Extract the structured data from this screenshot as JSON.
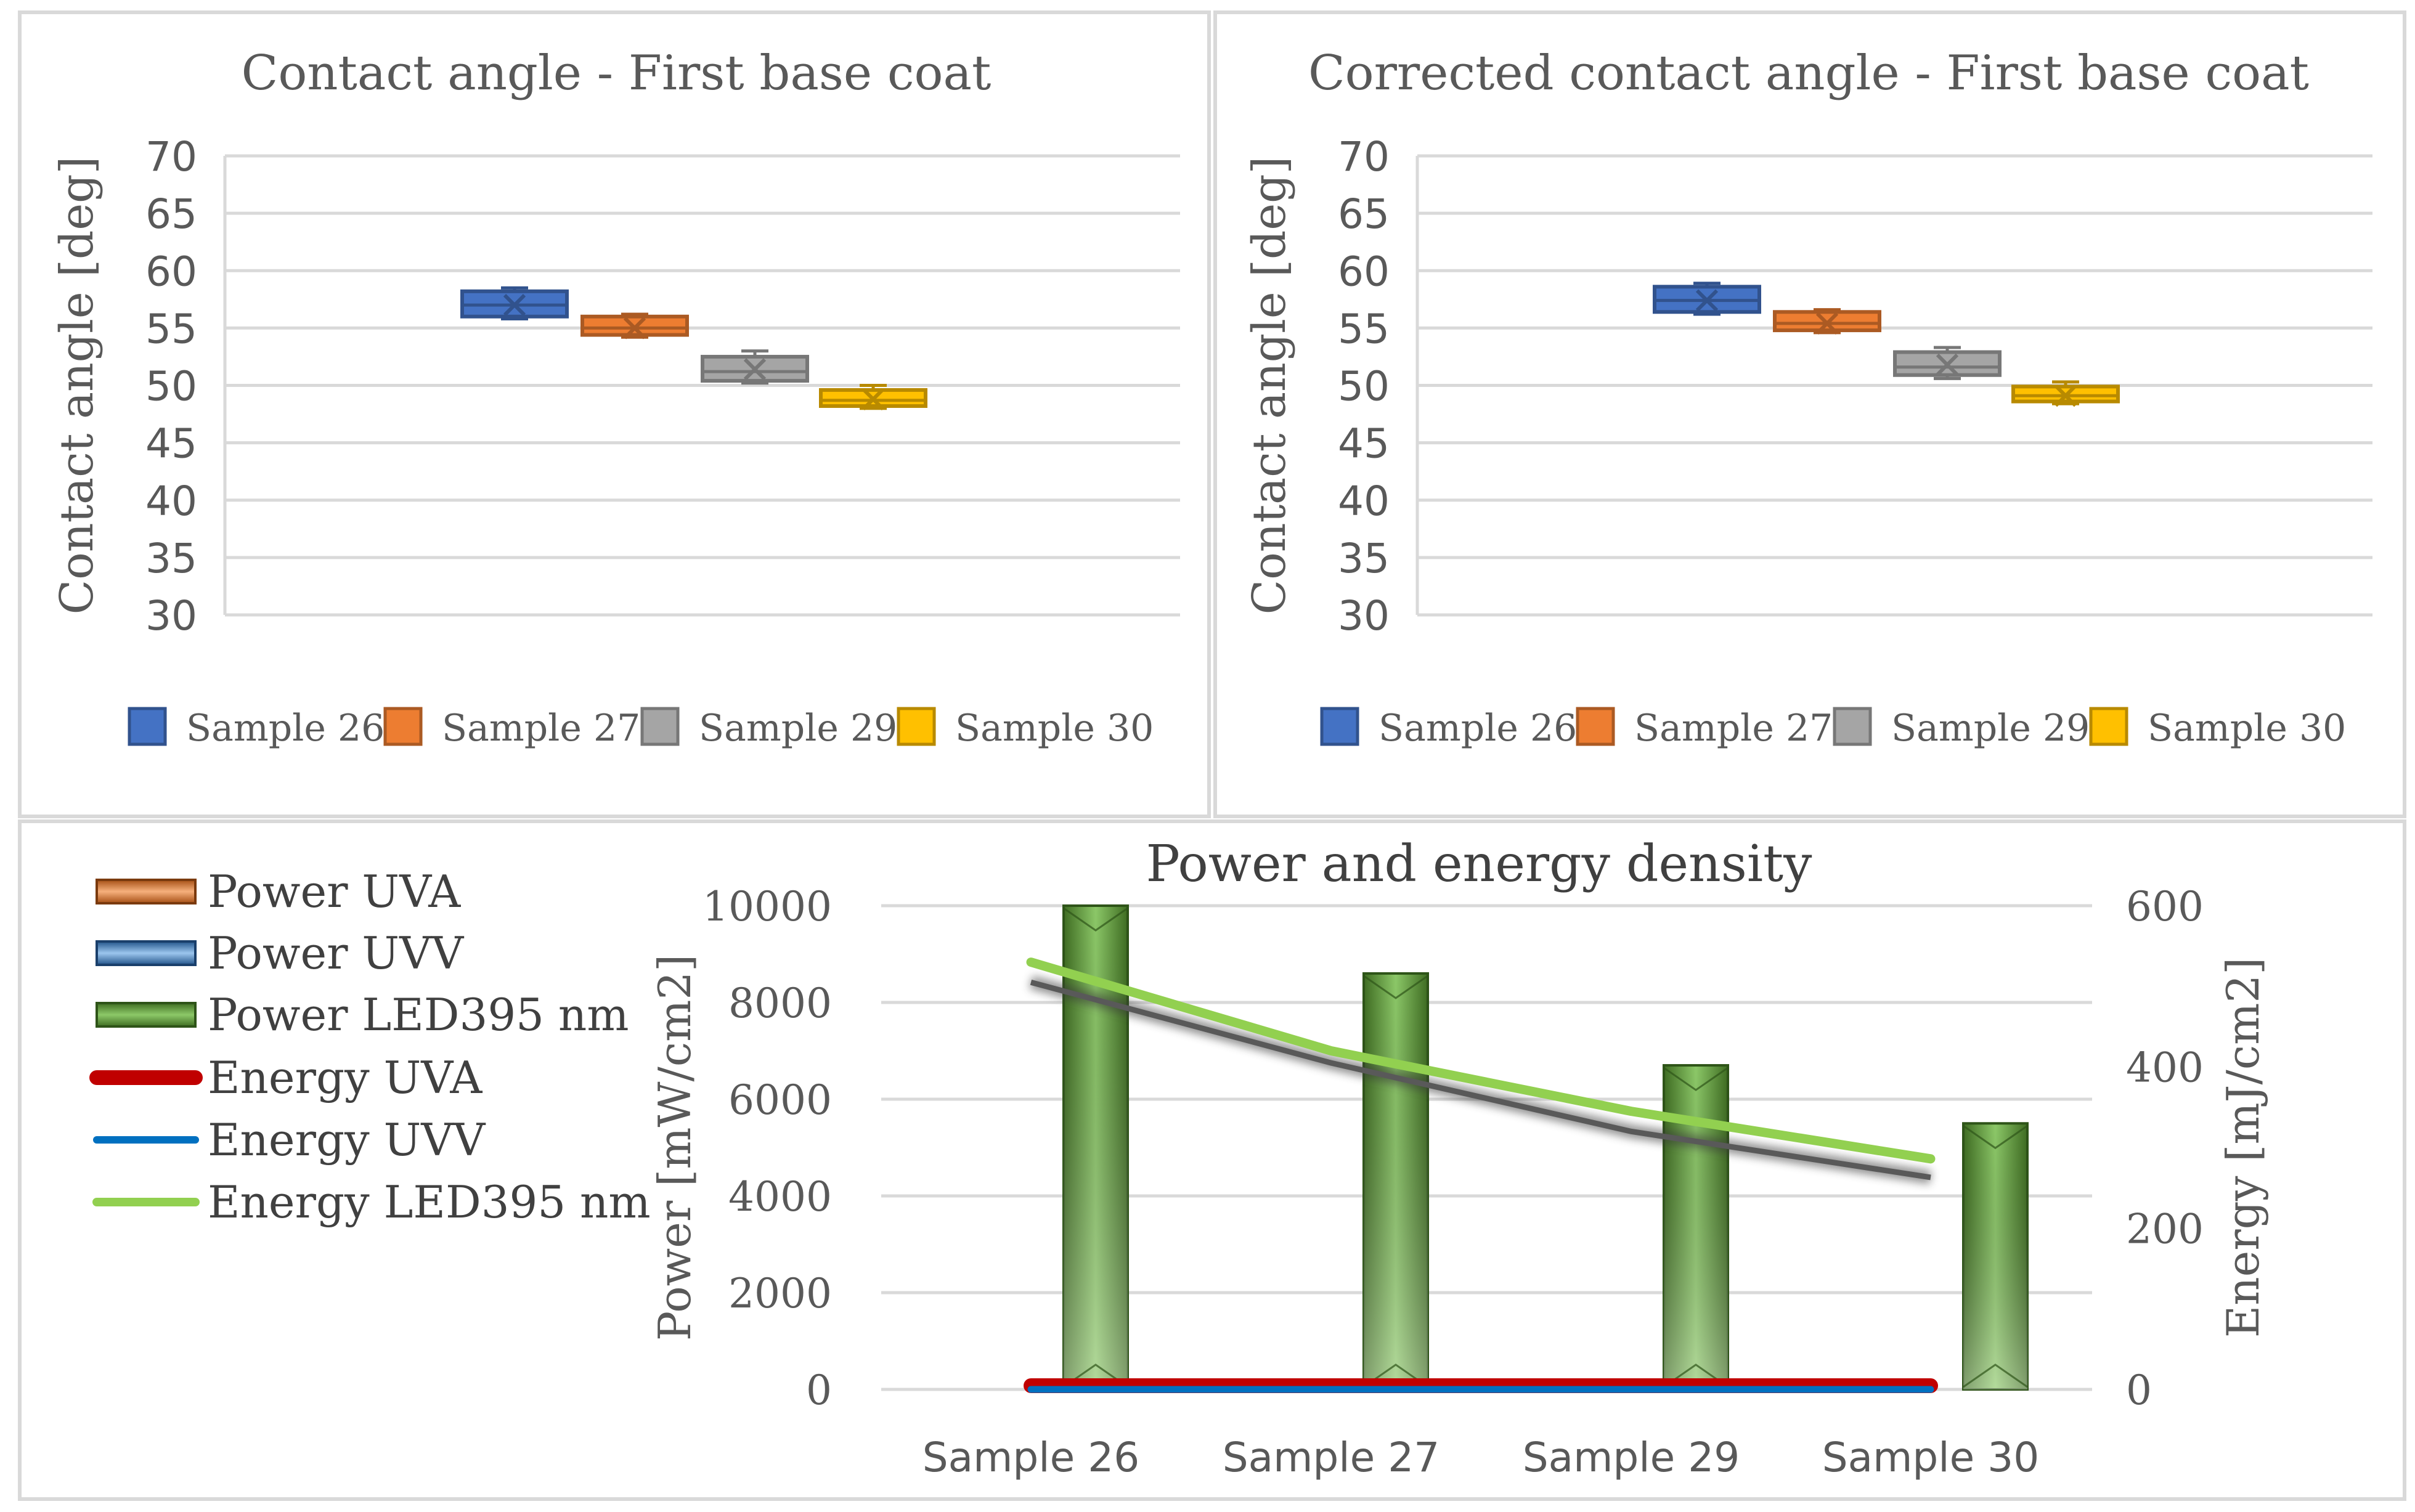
{
  "chart_data": [
    {
      "type": "box",
      "title": "Contact angle - First base coat",
      "ylabel": "Contact angle [deg]",
      "ylim": [
        30,
        70
      ],
      "yticks": [
        30,
        35,
        40,
        45,
        50,
        55,
        60,
        65,
        70
      ],
      "grid": true,
      "legend_position": "bottom",
      "series": [
        {
          "name": "Sample 26",
          "color": "#4472C4",
          "min": 55.8,
          "q1": 56.0,
          "median": 57.0,
          "q3": 58.2,
          "max": 58.5,
          "mean": 57.0
        },
        {
          "name": "Sample 27",
          "color": "#ED7D31",
          "min": 54.2,
          "q1": 54.4,
          "median": 55.0,
          "q3": 56.0,
          "max": 56.2,
          "mean": 55.0
        },
        {
          "name": "Sample 29",
          "color": "#A5A5A5",
          "min": 50.2,
          "q1": 50.4,
          "median": 51.2,
          "q3": 52.5,
          "max": 53.0,
          "mean": 51.4
        },
        {
          "name": "Sample 30",
          "color": "#FFC000",
          "min": 48.0,
          "q1": 48.2,
          "median": 48.7,
          "q3": 49.6,
          "max": 50.0,
          "mean": 48.8
        }
      ]
    },
    {
      "type": "box",
      "title": "Corrected contact angle - First base coat",
      "ylabel": "Contact angle [deg]",
      "ylim": [
        30,
        70
      ],
      "yticks": [
        30,
        35,
        40,
        45,
        50,
        55,
        60,
        65,
        70
      ],
      "grid": true,
      "legend_position": "bottom",
      "series": [
        {
          "name": "Sample 26",
          "color": "#4472C4",
          "min": 56.2,
          "q1": 56.4,
          "median": 57.4,
          "q3": 58.6,
          "max": 58.9,
          "mean": 57.4
        },
        {
          "name": "Sample 27",
          "color": "#ED7D31",
          "min": 54.6,
          "q1": 54.8,
          "median": 55.4,
          "q3": 56.4,
          "max": 56.6,
          "mean": 55.4
        },
        {
          "name": "Sample 29",
          "color": "#A5A5A5",
          "min": 50.6,
          "q1": 50.9,
          "median": 51.6,
          "q3": 52.9,
          "max": 53.3,
          "mean": 51.8
        },
        {
          "name": "Sample 30",
          "color": "#FFC000",
          "min": 48.4,
          "q1": 48.6,
          "median": 49.1,
          "q3": 49.9,
          "max": 50.3,
          "mean": 49.1
        }
      ]
    },
    {
      "type": "bar",
      "title": "Power and energy density",
      "categories": [
        "Sample 26",
        "Sample 27",
        "Sample 29",
        "Sample 30"
      ],
      "ylabel": "Power [mW/cm2]",
      "ylim": [
        0,
        10000
      ],
      "yticks": [
        0,
        2000,
        4000,
        6000,
        8000,
        10000
      ],
      "y2label": "Energy [mJ/cm2]",
      "y2lim": [
        0,
        600
      ],
      "y2ticks": [
        0,
        200,
        400,
        600
      ],
      "grid": true,
      "legend_position": "left",
      "bar_series": [
        {
          "name": "Power UVA",
          "color": "#ED7D31",
          "values": [
            0,
            0,
            0,
            0
          ]
        },
        {
          "name": "Power UVV",
          "color": "#5B9BD5",
          "values": [
            0,
            0,
            0,
            0
          ]
        },
        {
          "name": "Power LED395 nm",
          "color": "#70AD47",
          "values": [
            10000,
            8600,
            6700,
            5500
          ]
        }
      ],
      "line_series": [
        {
          "name": "Energy UVA",
          "color": "#C00000",
          "values": [
            0,
            0,
            0,
            0
          ]
        },
        {
          "name": "Energy UVV",
          "color": "#0070C0",
          "values": [
            0,
            0,
            0,
            0
          ]
        },
        {
          "name": "Energy LED395 nm",
          "color": "#92D050",
          "values": [
            530,
            420,
            345,
            286
          ]
        }
      ],
      "trendline": {
        "color": "#595959",
        "values": [
          505,
          405,
          320,
          263
        ]
      }
    }
  ]
}
